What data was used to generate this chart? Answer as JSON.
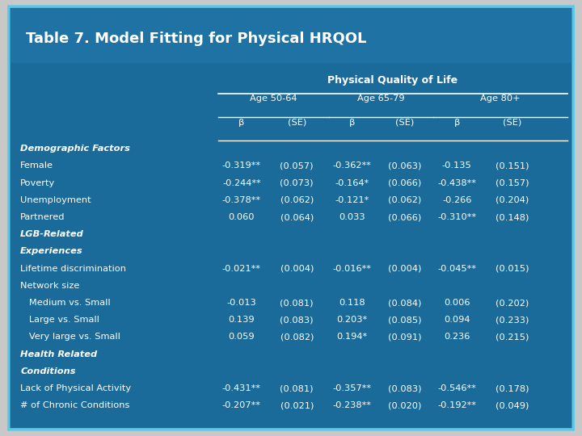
{
  "title": "Table 7. Model Fitting for Physical HRQOL",
  "outer_bg": "#e8e8e8",
  "inner_bg": "#1a6b9a",
  "title_bg": "#1a6b9a",
  "border_color": "#5bc8e8",
  "header1": "Physical Quality of Life",
  "col_groups": [
    "Age 50-64",
    "Age 65-79",
    "Age 80+"
  ],
  "col_headers": [
    "β",
    "(SE)",
    "β",
    "(SE)",
    "β",
    "(SE)"
  ],
  "rows": [
    {
      "label": "Demographic Factors",
      "italic": true,
      "bold": true,
      "data": null
    },
    {
      "label": "Female",
      "italic": false,
      "bold": false,
      "data": [
        "-0.319**",
        "(0.057)",
        "-0.362**",
        "(0.063)",
        "-0.135",
        "(0.151)"
      ]
    },
    {
      "label": "Poverty",
      "italic": false,
      "bold": false,
      "data": [
        "-0.244**",
        "(0.073)",
        "-0.164*",
        "(0.066)",
        "-0.438**",
        "(0.157)"
      ]
    },
    {
      "label": "Unemployment",
      "italic": false,
      "bold": false,
      "data": [
        "-0.378**",
        "(0.062)",
        "-0.121*",
        "(0.062)",
        "-0.266",
        "(0.204)"
      ]
    },
    {
      "label": "Partnered",
      "italic": false,
      "bold": false,
      "data": [
        "0.060",
        "(0.064)",
        "0.033",
        "(0.066)",
        "-0.310**",
        "(0.148)"
      ]
    },
    {
      "label": "LGB-Related",
      "italic": true,
      "bold": true,
      "data": null
    },
    {
      "label": "Experiences",
      "italic": true,
      "bold": true,
      "data": null
    },
    {
      "label": "Lifetime discrimination",
      "italic": false,
      "bold": false,
      "data": [
        "-0.021**",
        "(0.004)",
        "-0.016**",
        "(0.004)",
        "-0.045**",
        "(0.015)"
      ]
    },
    {
      "label": "Network size",
      "italic": false,
      "bold": false,
      "data": null
    },
    {
      "label": "   Medium vs. Small",
      "italic": false,
      "bold": false,
      "data": [
        "-0.013",
        "(0.081)",
        "0.118",
        "(0.084)",
        "0.006",
        "(0.202)"
      ]
    },
    {
      "label": "   Large vs. Small",
      "italic": false,
      "bold": false,
      "data": [
        "0.139",
        "(0.083)",
        "0.203*",
        "(0.085)",
        "0.094",
        "(0.233)"
      ]
    },
    {
      "label": "   Very large vs. Small",
      "italic": false,
      "bold": false,
      "data": [
        "0.059",
        "(0.082)",
        "0.194*",
        "(0.091)",
        "0.236",
        "(0.215)"
      ]
    },
    {
      "label": "Health Related",
      "italic": true,
      "bold": true,
      "data": null
    },
    {
      "label": "Conditions",
      "italic": true,
      "bold": true,
      "data": null
    },
    {
      "label": "Lack of Physical Activity",
      "italic": false,
      "bold": false,
      "data": [
        "-0.431**",
        "(0.081)",
        "-0.357**",
        "(0.083)",
        "-0.546**",
        "(0.178)"
      ]
    },
    {
      "label": "# of Chronic Conditions",
      "italic": false,
      "bold": false,
      "data": [
        "-0.207**",
        "(0.021)",
        "-0.238**",
        "(0.020)",
        "-0.192**",
        "(0.049)"
      ]
    }
  ],
  "text_color": "white",
  "font_size": 8.2,
  "header_font_size": 9.0,
  "title_font_size": 13.0
}
